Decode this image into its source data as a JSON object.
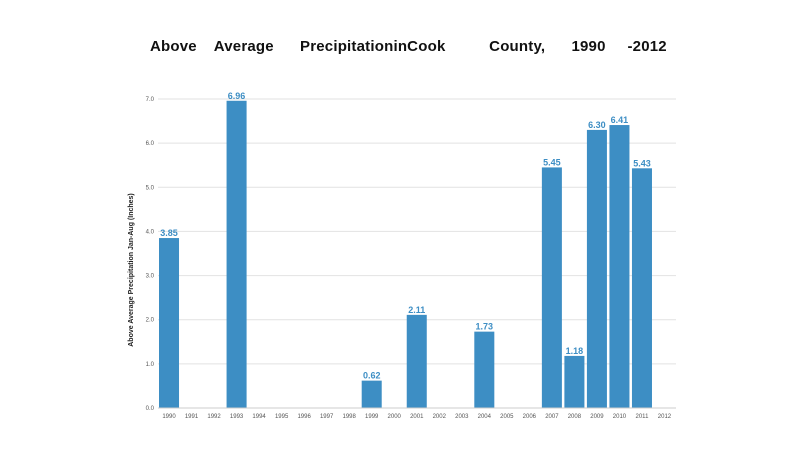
{
  "chart_data": {
    "type": "bar",
    "title": "Above    Average      PrecipitationinCook          County,      1990     -2012",
    "ylabel": "Above Average Precipitation Jan-Aug (Inches)",
    "xlabel": "",
    "ylim": [
      0,
      7
    ],
    "grid": true,
    "categories": [
      "1990",
      "1991",
      "1992",
      "1993",
      "1994",
      "1995",
      "1996",
      "1997",
      "1998",
      "1999",
      "2000",
      "2001",
      "2002",
      "2003",
      "2004",
      "2005",
      "2006",
      "2007",
      "2008",
      "2009",
      "2010",
      "2011",
      "2012"
    ],
    "values": [
      3.85,
      0,
      0,
      6.96,
      0,
      0,
      0,
      0,
      0,
      0.62,
      0,
      2.11,
      0,
      0,
      1.73,
      0,
      0,
      5.45,
      1.18,
      6.3,
      6.41,
      5.43,
      0
    ],
    "value_labels": [
      "3.85",
      "",
      "",
      "6.96",
      "",
      "",
      "",
      "",
      "",
      "0.62",
      "",
      "2.11",
      "",
      "",
      "1.73",
      "",
      "",
      "5.45",
      "1.18",
      "6.30",
      "6.41",
      "5.43",
      ""
    ],
    "yticks": [
      "0.0",
      "1.0",
      "2.0",
      "3.0",
      "4.0",
      "5.0",
      "6.0",
      "7.0"
    ],
    "bar_color": "#3d8ec4",
    "label_color": "#3d8ec4"
  }
}
